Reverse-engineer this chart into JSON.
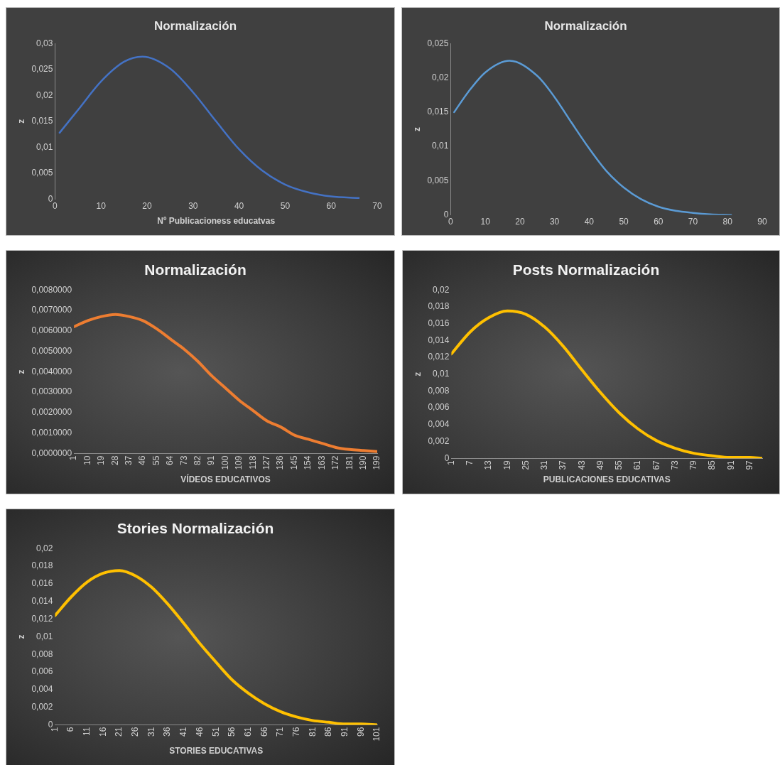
{
  "chart_data": [
    {
      "type": "line",
      "title": "Normalización",
      "xlabel": "Nº Publicacioness educatvas",
      "ylabel": "z",
      "series": [
        {
          "color": "#4472c4",
          "x": [
            1,
            5,
            10,
            15,
            19,
            25,
            30,
            35,
            40,
            45,
            50,
            55,
            60,
            66
          ],
          "values": [
            0.0128,
            0.0172,
            0.0227,
            0.0265,
            0.0275,
            0.0252,
            0.0206,
            0.015,
            0.0096,
            0.0055,
            0.0028,
            0.0013,
            0.0005,
            0.0002
          ]
        }
      ],
      "xlim": [
        0,
        70
      ],
      "xticks": [
        0,
        10,
        20,
        30,
        40,
        50,
        60,
        70
      ],
      "ylim": [
        0,
        0.03
      ],
      "yticks": [
        {
          "value": 0,
          "label": "0"
        },
        {
          "value": 0.005,
          "label": "0,005"
        },
        {
          "value": 0.01,
          "label": "0,01"
        },
        {
          "value": 0.015,
          "label": "0,015"
        },
        {
          "value": 0.02,
          "label": "0,02"
        },
        {
          "value": 0.025,
          "label": "0,025"
        },
        {
          "value": 0.03,
          "label": "0,03"
        }
      ],
      "grid": false,
      "legend": false,
      "marker": "none",
      "line_style": "solid"
    },
    {
      "type": "line",
      "title": "Normalización",
      "ylabel": "z",
      "series": [
        {
          "color": "#5b9bd5",
          "x": [
            1,
            5,
            10,
            17,
            25,
            30,
            35,
            40,
            45,
            50,
            55,
            60,
            65,
            70,
            75,
            81
          ],
          "values": [
            0.015,
            0.0179,
            0.0208,
            0.0225,
            0.0203,
            0.0172,
            0.0134,
            0.0097,
            0.0064,
            0.004,
            0.0023,
            0.0012,
            0.0006,
            0.0003,
            0.0001,
            0
          ]
        }
      ],
      "xlim": [
        0,
        90
      ],
      "xticks": [
        0,
        10,
        20,
        30,
        40,
        50,
        60,
        70,
        80,
        90
      ],
      "ylim": [
        0,
        0.025
      ],
      "yticks": [
        {
          "value": 0,
          "label": "0"
        },
        {
          "value": 0.005,
          "label": "0,005"
        },
        {
          "value": 0.01,
          "label": "0,01"
        },
        {
          "value": 0.015,
          "label": "0,015"
        },
        {
          "value": 0.02,
          "label": "0,02"
        },
        {
          "value": 0.025,
          "label": "0,025"
        }
      ],
      "grid": false,
      "legend": false,
      "marker": "none",
      "line_style": "solid"
    },
    {
      "type": "line",
      "title": "Normalización",
      "xlabel": "VÍDEOS EDUCATIVOS",
      "ylabel": "z",
      "series": [
        {
          "color": "#ed7d31",
          "x": [
            1,
            10,
            19,
            28,
            37,
            46,
            55,
            64,
            73,
            82,
            91,
            100,
            109,
            118,
            127,
            136,
            145,
            154,
            163,
            172,
            181,
            190,
            199
          ],
          "values": [
            0.0062,
            0.0065,
            0.0067,
            0.0068,
            0.0067,
            0.0065,
            0.0061,
            0.0056,
            0.0051,
            0.0045,
            0.0038,
            0.0032,
            0.0026,
            0.0021,
            0.0016,
            0.0013,
            0.0009,
            0.0007,
            0.0005,
            0.0003,
            0.0002,
            0.00015,
            0.0001
          ]
        }
      ],
      "xlim": [
        1,
        199
      ],
      "xticks": [
        1,
        10,
        19,
        28,
        37,
        46,
        55,
        64,
        73,
        82,
        91,
        100,
        109,
        118,
        127,
        136,
        145,
        154,
        163,
        172,
        181,
        190,
        199
      ],
      "ylim": [
        0,
        0.008
      ],
      "yticks": [
        {
          "value": 0,
          "label": "0,0000000"
        },
        {
          "value": 0.001,
          "label": "0,0010000"
        },
        {
          "value": 0.002,
          "label": "0,0020000"
        },
        {
          "value": 0.003,
          "label": "0,0030000"
        },
        {
          "value": 0.004,
          "label": "0,0040000"
        },
        {
          "value": 0.005,
          "label": "0,0050000"
        },
        {
          "value": 0.006,
          "label": "0,0060000"
        },
        {
          "value": 0.007,
          "label": "0,0070000"
        },
        {
          "value": 0.008,
          "label": "0,0080000"
        }
      ],
      "grid": false,
      "legend": false,
      "marker": "none",
      "line_style": "solid"
    },
    {
      "type": "line",
      "title": "Posts Normalización",
      "xlabel": "PUBLICACIONES EDUCATIVAS",
      "ylabel": "z",
      "series": [
        {
          "color": "#ffc000",
          "x": [
            1,
            7,
            13,
            19,
            25,
            31,
            37,
            43,
            49,
            55,
            61,
            67,
            73,
            79,
            85,
            91,
            97,
            101
          ],
          "values": [
            0.0124,
            0.015,
            0.0167,
            0.0175,
            0.0171,
            0.0156,
            0.0133,
            0.0105,
            0.0078,
            0.0054,
            0.0035,
            0.0021,
            0.0012,
            0.0006,
            0.0003,
            0.0001,
            0.0001,
            0
          ]
        }
      ],
      "xlim": [
        1,
        101
      ],
      "xticks": [
        1,
        7,
        13,
        19,
        25,
        31,
        37,
        43,
        49,
        55,
        61,
        67,
        73,
        79,
        85,
        91,
        97
      ],
      "ylim": [
        0,
        0.02
      ],
      "yticks": [
        {
          "value": 0,
          "label": "0"
        },
        {
          "value": 0.002,
          "label": "0,002"
        },
        {
          "value": 0.004,
          "label": "0,004"
        },
        {
          "value": 0.006,
          "label": "0,006"
        },
        {
          "value": 0.008,
          "label": "0,008"
        },
        {
          "value": 0.01,
          "label": "0,01"
        },
        {
          "value": 0.012,
          "label": "0,012"
        },
        {
          "value": 0.014,
          "label": "0,014"
        },
        {
          "value": 0.016,
          "label": "0,016"
        },
        {
          "value": 0.018,
          "label": "0,018"
        },
        {
          "value": 0.02,
          "label": "0,02"
        }
      ],
      "grid": false,
      "legend": false,
      "marker": "none",
      "line_style": "solid"
    },
    {
      "type": "line",
      "title": "Stories Normalización",
      "xlabel": "STORIES EDUCATIVAS",
      "ylabel": "z",
      "series": [
        {
          "color": "#ffc000",
          "x": [
            1,
            6,
            11,
            16,
            21,
            26,
            31,
            36,
            41,
            46,
            51,
            56,
            61,
            66,
            71,
            76,
            81,
            86,
            91,
            96,
            101
          ],
          "values": [
            0.0124,
            0.0145,
            0.0162,
            0.0172,
            0.0175,
            0.0169,
            0.0156,
            0.0137,
            0.0115,
            0.0092,
            0.0071,
            0.0051,
            0.0036,
            0.0024,
            0.0015,
            0.0009,
            0.0005,
            0.0003,
            0.0001,
            0.0001,
            0
          ]
        }
      ],
      "xlim": [
        1,
        101
      ],
      "xticks": [
        1,
        6,
        11,
        16,
        21,
        26,
        31,
        36,
        41,
        46,
        51,
        56,
        61,
        66,
        71,
        76,
        81,
        86,
        91,
        96,
        101
      ],
      "ylim": [
        0,
        0.02
      ],
      "yticks": [
        {
          "value": 0,
          "label": "0"
        },
        {
          "value": 0.002,
          "label": "0,002"
        },
        {
          "value": 0.004,
          "label": "0,004"
        },
        {
          "value": 0.006,
          "label": "0,006"
        },
        {
          "value": 0.008,
          "label": "0,008"
        },
        {
          "value": 0.01,
          "label": "0,01"
        },
        {
          "value": 0.012,
          "label": "0,012"
        },
        {
          "value": 0.014,
          "label": "0,014"
        },
        {
          "value": 0.016,
          "label": "0,016"
        },
        {
          "value": 0.018,
          "label": "0,018"
        },
        {
          "value": 0.02,
          "label": "0,02"
        }
      ],
      "grid": false,
      "legend": false,
      "marker": "none",
      "line_style": "solid"
    }
  ]
}
